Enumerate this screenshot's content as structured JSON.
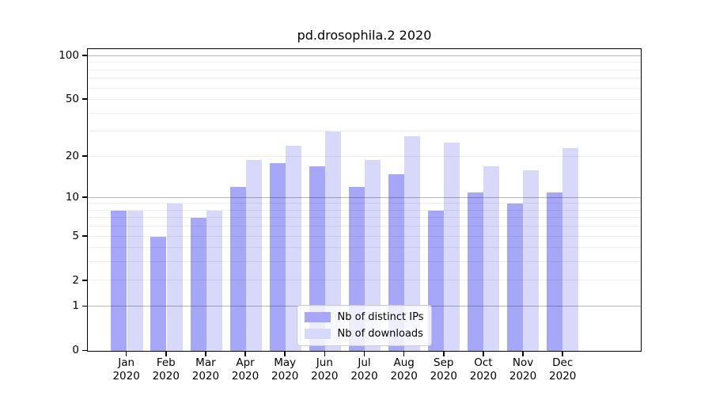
{
  "chart_data": {
    "type": "bar",
    "title": "pd.drosophila.2 2020",
    "categories": [
      "Jan 2020",
      "Feb 2020",
      "Mar 2020",
      "Apr 2020",
      "May 2020",
      "Jun 2020",
      "Jul 2020",
      "Aug 2020",
      "Sep 2020",
      "Oct 2020",
      "Nov 2020",
      "Dec 2020"
    ],
    "series": [
      {
        "name": "Nb of distinct IPs",
        "color": "#a7a7f7",
        "values": [
          8,
          5,
          7,
          12,
          18,
          17,
          12,
          15,
          8,
          11,
          9,
          11
        ]
      },
      {
        "name": "Nb of downloads",
        "color": "#d8d8fa",
        "values": [
          8,
          9,
          8,
          19,
          24,
          30,
          19,
          28,
          25,
          17,
          16,
          23
        ]
      }
    ],
    "yscale": "log10(1+x)",
    "ylim": [
      0,
      112
    ],
    "yticks": [
      0,
      1,
      2,
      5,
      10,
      20,
      50,
      100
    ],
    "grid_major": [
      1,
      10,
      100
    ],
    "grid_minor": [
      2,
      3,
      4,
      5,
      6,
      7,
      8,
      9,
      20,
      30,
      40,
      50,
      60,
      70,
      80,
      90
    ],
    "xlabel": "",
    "ylabel": "",
    "legend_position": "lower center",
    "grid": "on"
  }
}
